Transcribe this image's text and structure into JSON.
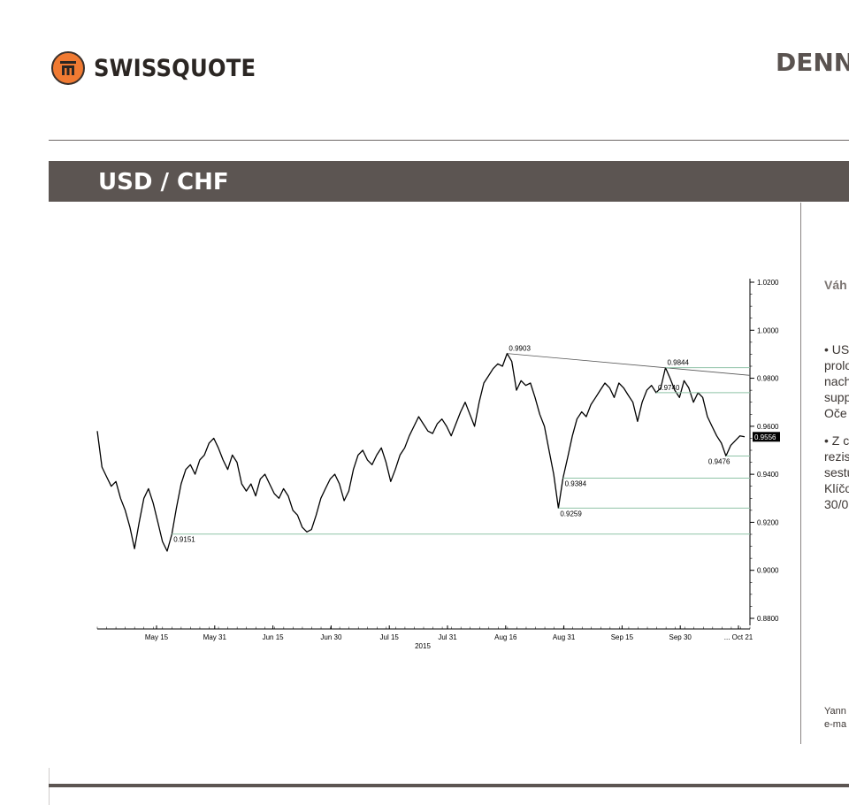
{
  "brand": {
    "name": "SWISSQUOTE",
    "accent": "#f07a32"
  },
  "header": {
    "heading_fragment": "DENN"
  },
  "section": {
    "title": "USD / CHF"
  },
  "sidebar": {
    "heading": "Váh",
    "lines": [
      "• US",
      "prolo",
      "nach",
      "supp",
      "Oče",
      "",
      "• Z c",
      "rezis",
      "sestu",
      "Klíčo",
      "30/0"
    ],
    "footer": [
      "Yann",
      "e-ma"
    ]
  },
  "chart_data": {
    "type": "line",
    "title": "",
    "xlabel": "2015",
    "ylabel": "",
    "ylim": [
      0.88,
      1.02
    ],
    "yticks": [
      "1.0200",
      "1.0000",
      "0.9800",
      "0.9600",
      "0.9400",
      "0.9200",
      "0.9000",
      "0.8800"
    ],
    "xticks": [
      "May 15",
      "May 31",
      "Jun 15",
      "Jun 30",
      "Jul 15",
      "Jul 31",
      "Aug 16",
      "Aug 31",
      "Sep 15",
      "Sep 30",
      "... Oct 21"
    ],
    "series": [
      {
        "color": "#000000",
        "values": [
          0.958,
          0.943,
          0.939,
          0.935,
          0.937,
          0.93,
          0.925,
          0.918,
          0.909,
          0.92,
          0.93,
          0.934,
          0.928,
          0.92,
          0.912,
          0.908,
          0.915,
          0.926,
          0.936,
          0.942,
          0.944,
          0.94,
          0.946,
          0.948,
          0.953,
          0.955,
          0.951,
          0.946,
          0.942,
          0.948,
          0.945,
          0.936,
          0.933,
          0.936,
          0.931,
          0.938,
          0.94,
          0.936,
          0.932,
          0.93,
          0.934,
          0.931,
          0.925,
          0.923,
          0.918,
          0.916,
          0.917,
          0.923,
          0.93,
          0.934,
          0.938,
          0.94,
          0.936,
          0.929,
          0.933,
          0.942,
          0.948,
          0.95,
          0.946,
          0.944,
          0.948,
          0.951,
          0.945,
          0.937,
          0.942,
          0.948,
          0.951,
          0.956,
          0.96,
          0.964,
          0.961,
          0.958,
          0.957,
          0.961,
          0.963,
          0.96,
          0.956,
          0.961,
          0.966,
          0.97,
          0.965,
          0.96,
          0.97,
          0.978,
          0.981,
          0.984,
          0.986,
          0.985,
          0.9903,
          0.987,
          0.975,
          0.979,
          0.977,
          0.978,
          0.972,
          0.965,
          0.96,
          0.95,
          0.94,
          0.9259,
          0.9384,
          0.947,
          0.956,
          0.963,
          0.966,
          0.964,
          0.969,
          0.972,
          0.975,
          0.978,
          0.976,
          0.972,
          0.978,
          0.976,
          0.973,
          0.97,
          0.962,
          0.97,
          0.975,
          0.977,
          0.974,
          0.976,
          0.9844,
          0.98,
          0.975,
          0.972,
          0.979,
          0.976,
          0.97,
          0.974,
          0.972,
          0.964,
          0.96,
          0.956,
          0.953,
          0.9476,
          0.952,
          0.954,
          0.956,
          0.9556
        ]
      }
    ],
    "levels": [
      {
        "label": "0.9903",
        "value": 0.9903
      },
      {
        "label": "0.9844",
        "value": 0.9844
      },
      {
        "label": "0.9740",
        "value": 0.974
      },
      {
        "label": "0.9476",
        "value": 0.9476
      },
      {
        "label": "0.9384",
        "value": 0.9384
      },
      {
        "label": "0.9259",
        "value": 0.9259
      },
      {
        "label": "0.9151",
        "value": 0.9151
      }
    ],
    "last_price": "0.9556",
    "grid": false
  }
}
